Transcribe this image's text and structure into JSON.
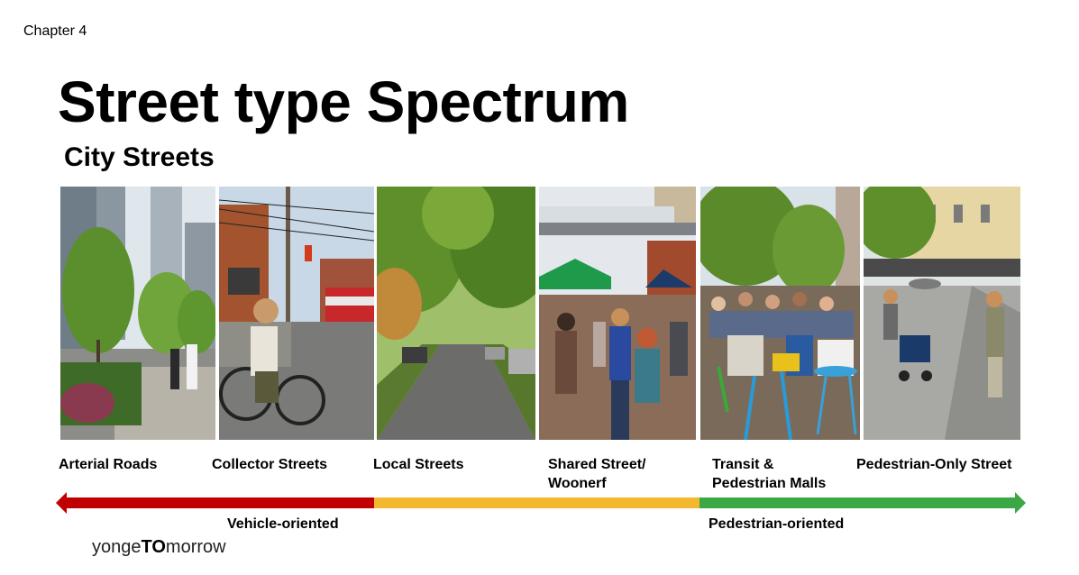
{
  "chapter": "Chapter 4",
  "title": "Street type Spectrum",
  "subtitle": "City Streets",
  "street_types": [
    {
      "label": "Arterial Roads"
    },
    {
      "label": "Collector Streets"
    },
    {
      "label": "Local Streets"
    },
    {
      "label": "Shared Street/\nWoonerf"
    },
    {
      "label": "Transit &\nPedestrian Malls"
    },
    {
      "label": "Pedestrian-Only Street"
    }
  ],
  "spectrum": {
    "left_label": "Vehicle-oriented",
    "right_label": "Pedestrian-oriented",
    "colors": {
      "vehicle": "#c00000",
      "mixed": "#f4b730",
      "pedestrian": "#3aa845"
    }
  },
  "logo": {
    "part1": "yonge",
    "part2": "TO",
    "part3": "morrow"
  }
}
